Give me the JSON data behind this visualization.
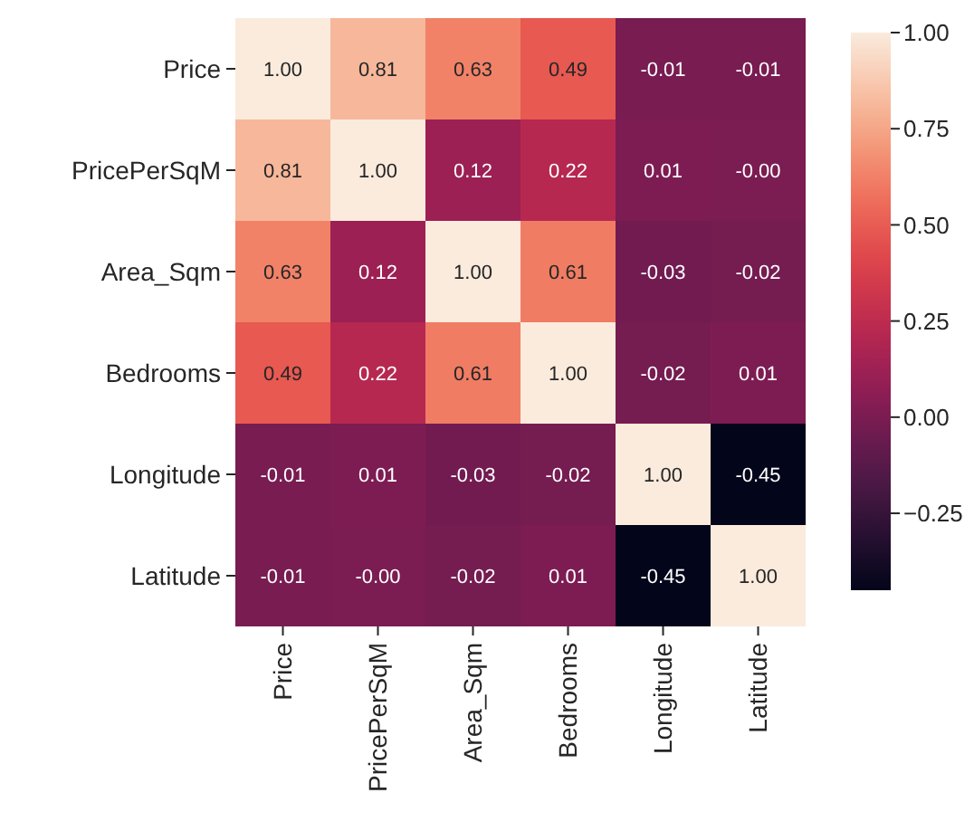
{
  "chart_data": {
    "type": "heatmap",
    "categories": [
      "Price",
      "PricePerSqM",
      "Area_Sqm",
      "Bedrooms",
      "Longitude",
      "Latitude"
    ],
    "y_categories": [
      "Price",
      "PricePerSqM",
      "Area_Sqm",
      "Bedrooms",
      "Longitude",
      "Latitude"
    ],
    "cells": [
      [
        1.0,
        0.81,
        0.63,
        0.49,
        -0.01,
        -0.01
      ],
      [
        0.81,
        1.0,
        0.12,
        0.22,
        0.01,
        -0.0
      ],
      [
        0.63,
        0.12,
        1.0,
        0.61,
        -0.03,
        -0.02
      ],
      [
        0.49,
        0.22,
        0.61,
        1.0,
        -0.02,
        0.01
      ],
      [
        -0.01,
        0.01,
        -0.03,
        -0.02,
        1.0,
        -0.45
      ],
      [
        -0.01,
        -0.0,
        -0.02,
        0.01,
        -0.45,
        1.0
      ]
    ],
    "cell_labels": [
      [
        "1.00",
        "0.81",
        "0.63",
        "0.49",
        "-0.01",
        "-0.01"
      ],
      [
        "0.81",
        "1.00",
        "0.12",
        "0.22",
        "0.01",
        "-0.00"
      ],
      [
        "0.63",
        "0.12",
        "1.00",
        "0.61",
        "-0.03",
        "-0.02"
      ],
      [
        "0.49",
        "0.22",
        "0.61",
        "1.00",
        "-0.02",
        "0.01"
      ],
      [
        "-0.01",
        "0.01",
        "-0.03",
        "-0.02",
        "1.00",
        "-0.45"
      ],
      [
        "-0.01",
        "-0.00",
        "-0.02",
        "0.01",
        "-0.45",
        "1.00"
      ]
    ],
    "clim": [
      -0.45,
      1.0
    ],
    "cticks": [
      {
        "value": 1.0,
        "label": "1.00"
      },
      {
        "value": 0.75,
        "label": "0.75"
      },
      {
        "value": 0.5,
        "label": "0.50"
      },
      {
        "value": 0.25,
        "label": "0.25"
      },
      {
        "value": 0.0,
        "label": "0.00"
      },
      {
        "value": -0.25,
        "label": "−0.25"
      }
    ]
  }
}
